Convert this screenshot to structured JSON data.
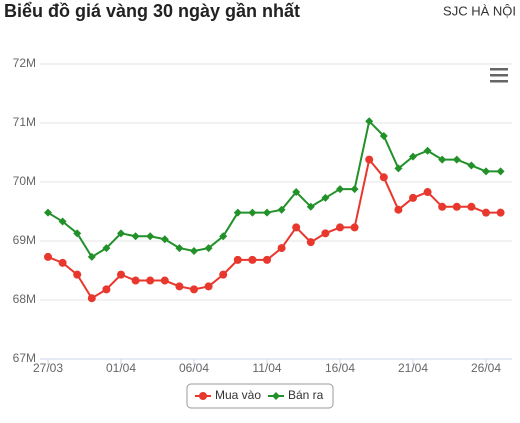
{
  "chart_data": {
    "type": "line",
    "title": "Biểu đồ giá vàng 30 ngày gần nhất",
    "subtitle": "SJC HÀ NỘI",
    "categories": [
      "27/03",
      null,
      null,
      null,
      null,
      "01/04",
      null,
      null,
      null,
      null,
      "06/04",
      null,
      null,
      null,
      null,
      "11/04",
      null,
      null,
      null,
      null,
      "16/04",
      null,
      null,
      null,
      null,
      "21/04",
      null,
      null,
      null,
      null,
      "26/04",
      null
    ],
    "series": [
      {
        "name": "Mua vào",
        "color": "#e8372c",
        "values": [
          68.73,
          68.63,
          68.43,
          68.03,
          68.18,
          68.43,
          68.33,
          68.33,
          68.33,
          68.23,
          68.18,
          68.23,
          68.43,
          68.68,
          68.68,
          68.68,
          68.88,
          69.23,
          68.98,
          69.13,
          69.23,
          69.23,
          70.38,
          70.08,
          69.53,
          69.73,
          69.83,
          69.58,
          69.58,
          69.58,
          69.48,
          69.48
        ]
      },
      {
        "name": "Bán ra",
        "color": "#22912a",
        "values": [
          69.48,
          69.33,
          69.13,
          68.73,
          68.88,
          69.13,
          69.08,
          69.08,
          69.03,
          68.88,
          68.83,
          68.88,
          69.08,
          69.48,
          69.48,
          69.48,
          69.53,
          69.83,
          69.58,
          69.73,
          69.88,
          69.88,
          71.03,
          70.78,
          70.23,
          70.43,
          70.53,
          70.38,
          70.38,
          70.28,
          70.18,
          70.18
        ]
      }
    ],
    "ylim": [
      67,
      72
    ],
    "yticks": [
      {
        "value": 67,
        "label": "67M"
      },
      {
        "value": 68,
        "label": "68M"
      },
      {
        "value": 69,
        "label": "69M"
      },
      {
        "value": 70,
        "label": "70M"
      },
      {
        "value": 71,
        "label": "71M"
      },
      {
        "value": 72,
        "label": "72M"
      }
    ],
    "grid": true
  }
}
